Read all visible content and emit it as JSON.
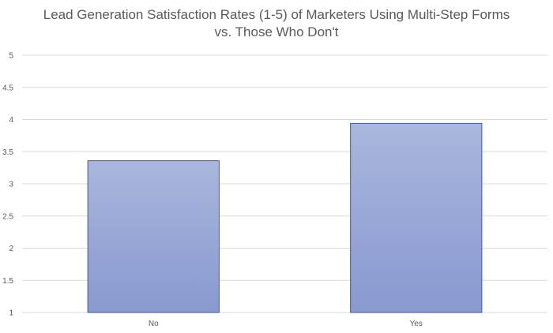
{
  "title_lines": [
    "Lead Generation Satisfaction Rates (1-5) of Marketers Using Multi-Step Forms",
    "vs. Those Who Don't"
  ],
  "chart_data": {
    "type": "bar",
    "title": "Lead Generation Satisfaction Rates (1-5) of Marketers Using Multi-Step Forms vs. Those Who Don't",
    "categories": [
      "No",
      "Yes"
    ],
    "values": [
      3.36,
      3.94
    ],
    "xlabel": "",
    "ylabel": "",
    "ylim": [
      1,
      5
    ],
    "yticks": [
      "1",
      "1.5",
      "2",
      "2.5",
      "3",
      "3.5",
      "4",
      "4.5",
      "5"
    ],
    "grid": true,
    "legend": "none",
    "colors": {
      "bar_top": "#aab6dd",
      "bar_bottom": "#8899d0",
      "bar_border": "#3c5aa0",
      "grid": "#d9d9d9",
      "text": "#595959"
    }
  }
}
